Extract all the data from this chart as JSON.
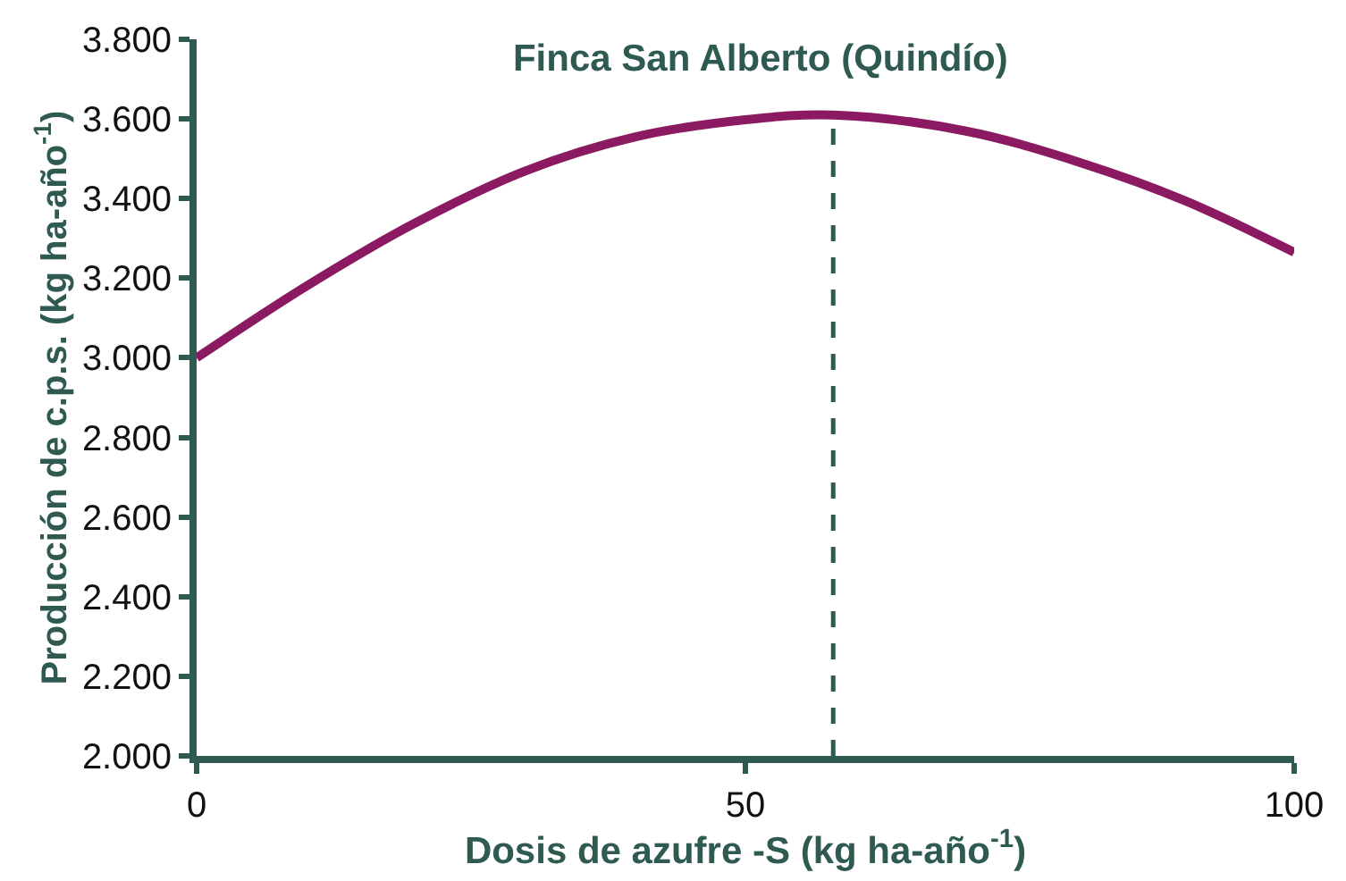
{
  "chart_data": {
    "type": "line",
    "title": "Finca San Alberto (Quindío)",
    "xlabel": "Dosis de azufre -S (kg ha-año$^{-1}$)",
    "ylabel": "Producción de c.p.s. (kg ha-año$^{-1}$)",
    "x": [
      0,
      10,
      20,
      30,
      40,
      50,
      58,
      70,
      80,
      90,
      100
    ],
    "series": [
      {
        "color": "#8c1a62",
        "values": [
          3000,
          3180,
          3340,
          3470,
          3555,
          3598,
          3610,
          3570,
          3495,
          3395,
          3265
        ]
      }
    ],
    "xlim": [
      0,
      100
    ],
    "xticks": [
      0,
      50,
      100
    ],
    "ylim": [
      2000,
      3800
    ],
    "yticks": [
      {
        "value": 2000,
        "label": "2.000"
      },
      {
        "value": 2200,
        "label": "2.200"
      },
      {
        "value": 2400,
        "label": "2.400"
      },
      {
        "value": 2600,
        "label": "2.600"
      },
      {
        "value": 2800,
        "label": "2.800"
      },
      {
        "value": 3000,
        "label": "3.000"
      },
      {
        "value": 3200,
        "label": "3.200"
      },
      {
        "value": 3400,
        "label": "3.400"
      },
      {
        "value": 3600,
        "label": "3.600"
      },
      {
        "value": 3800,
        "label": "3.800"
      }
    ],
    "ref_lines": [
      {
        "axis": "x",
        "value": 58,
        "color": "#2e5a52",
        "line_style": "dashed"
      }
    ],
    "grid": false,
    "marker": "none",
    "line_style": "solid"
  }
}
